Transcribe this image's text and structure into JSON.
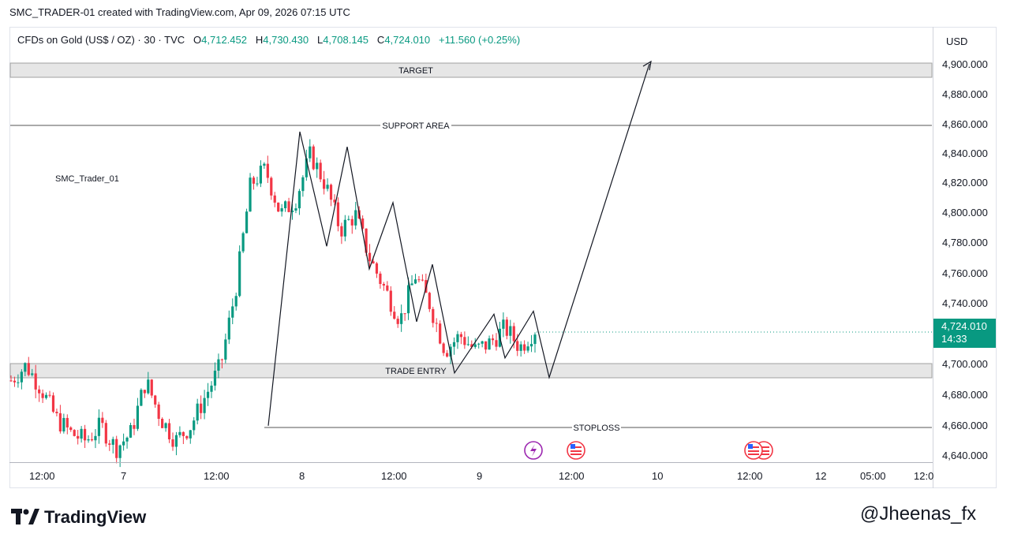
{
  "caption": "SMC_TRADER-01 created with TradingView.com, Apr 09, 2026 07:15 UTC",
  "legend": {
    "symbol": "CFDs on Gold (US$ / OZ) · 30 · TVC",
    "open_label": "O",
    "open": "4,712.452",
    "high_label": "H",
    "high": "4,730.430",
    "low_label": "L",
    "low": "4,708.145",
    "close_label": "C",
    "close": "4,724.010",
    "change": "+11.560 (+0.25%)"
  },
  "currency": "USD",
  "price_ticks": [
    "4,900.000",
    "4,880.000",
    "4,860.000",
    "4,840.000",
    "4,820.000",
    "4,800.000",
    "4,780.000",
    "4,760.000",
    "4,740.000",
    "4,700.000",
    "4,680.000",
    "4,660.000",
    "4,640.000"
  ],
  "last_price": {
    "value": "4,724.010",
    "countdown": "14:33"
  },
  "time_ticks": [
    "12:00",
    "7",
    "12:00",
    "8",
    "12:00",
    "9",
    "12:00",
    "10",
    "12:00",
    "12",
    "05:00",
    "12:0"
  ],
  "zones": {
    "target": "TARGET",
    "support": "SUPPORT AREA",
    "entry": "TRADE ENTRY",
    "stoploss": "STOPLOSS"
  },
  "watermark": "SMC_Trader_01",
  "brand": "TradingView",
  "handle": "@Jheenas_fx",
  "colors": {
    "up": "#089981",
    "down": "#f23645",
    "zone_fill": "#e6e6e6",
    "event_purple": "#9c27b0"
  },
  "chart_data": {
    "type": "candlestick",
    "instrument": "CFDs on Gold (US$ / OZ)",
    "interval": "30",
    "ylim": [
      4635,
      4915
    ],
    "price_path_approx": [
      4690,
      4700,
      4685,
      4665,
      4655,
      4650,
      4660,
      4645,
      4655,
      4690,
      4665,
      4650,
      4660,
      4680,
      4700,
      4750,
      4820,
      4830,
      4800,
      4810,
      4840,
      4820,
      4790,
      4800,
      4770,
      4750,
      4730,
      4760,
      4740,
      4710,
      4720,
      4710,
      4715,
      4725,
      4712,
      4724
    ],
    "levels": [
      {
        "name": "TARGET",
        "low": 4891,
        "high": 4900
      },
      {
        "name": "SUPPORT AREA",
        "value": 4858
      },
      {
        "name": "TRADE ENTRY",
        "low": 4691,
        "high": 4700
      },
      {
        "name": "STOPLOSS",
        "value": 4658
      }
    ],
    "projection_path": [
      4855,
      4779,
      4845,
      4764,
      4808,
      4729,
      4767,
      4695,
      4734,
      4705,
      4736,
      4692,
      4900
    ]
  }
}
